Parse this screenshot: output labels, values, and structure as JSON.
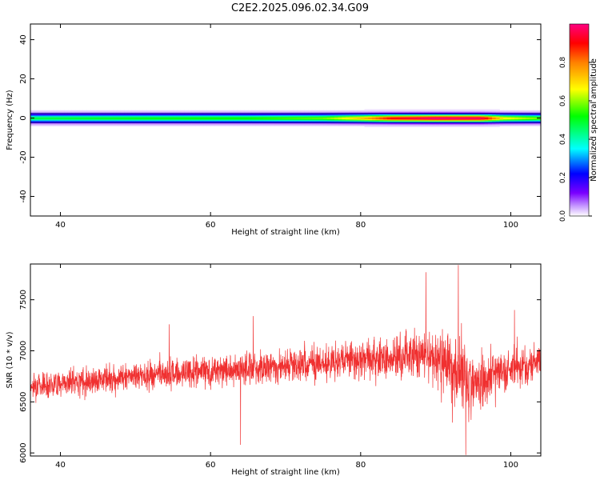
{
  "figure_title": "C2E2.2025.096.02.34.G09",
  "chart_data": [
    {
      "type": "heatmap",
      "xlabel": "Height of straight line (km)",
      "ylabel": "Frequency (Hz)",
      "xlim": [
        36,
        104
      ],
      "ylim": [
        -50,
        48
      ],
      "x_ticks": [
        40,
        60,
        80,
        100
      ],
      "y_ticks": [
        -40,
        -20,
        0,
        20,
        40
      ],
      "colorbar": {
        "label": "Normalized spectral amplitude",
        "range": [
          0,
          1
        ],
        "ticks": [
          0.0,
          0.2,
          0.4,
          0.6,
          0.8
        ],
        "tick_labels": [
          "0.0",
          "0.2",
          "0.4",
          "0.6",
          "0.8"
        ]
      },
      "band": {
        "center_hz": 0,
        "profile": [
          {
            "height_km": 36,
            "halfwidth_hz": 2.0,
            "peak_amplitude": 0.45
          },
          {
            "height_km": 50,
            "halfwidth_hz": 2.0,
            "peak_amplitude": 0.48
          },
          {
            "height_km": 65,
            "halfwidth_hz": 2.0,
            "peak_amplitude": 0.5
          },
          {
            "height_km": 75,
            "halfwidth_hz": 2.0,
            "peak_amplitude": 0.55
          },
          {
            "height_km": 80,
            "halfwidth_hz": 2.0,
            "peak_amplitude": 0.7
          },
          {
            "height_km": 84,
            "halfwidth_hz": 2.0,
            "peak_amplitude": 0.88
          },
          {
            "height_km": 90,
            "halfwidth_hz": 2.0,
            "peak_amplitude": 0.97
          },
          {
            "height_km": 96,
            "halfwidth_hz": 2.0,
            "peak_amplitude": 0.95
          },
          {
            "height_km": 99,
            "halfwidth_hz": 2.0,
            "peak_amplitude": 0.65
          },
          {
            "height_km": 104,
            "halfwidth_hz": 2.0,
            "peak_amplitude": 0.55
          }
        ]
      },
      "grid": false
    },
    {
      "type": "line",
      "xlabel": "Height of straight line (km)",
      "ylabel": "SNR (10 * v/v)",
      "xlim": [
        36,
        104
      ],
      "ylim": [
        5970,
        7850
      ],
      "x_ticks": [
        40,
        60,
        80,
        100
      ],
      "y_ticks": [
        6000,
        6500,
        7000,
        7500
      ],
      "grid": false,
      "series": [
        {
          "color": "#f03030",
          "envelope": [
            {
              "height_km": 36,
              "mean": 6660,
              "noise": 110
            },
            {
              "height_km": 45,
              "mean": 6720,
              "noise": 120
            },
            {
              "height_km": 55,
              "mean": 6780,
              "noise": 130
            },
            {
              "height_km": 65,
              "mean": 6830,
              "noise": 140
            },
            {
              "height_km": 75,
              "mean": 6880,
              "noise": 150
            },
            {
              "height_km": 82,
              "mean": 6920,
              "noise": 170
            },
            {
              "height_km": 88,
              "mean": 6950,
              "noise": 230
            },
            {
              "height_km": 91,
              "mean": 6900,
              "noise": 300
            },
            {
              "height_km": 93,
              "mean": 6850,
              "noise": 380
            },
            {
              "height_km": 95,
              "mean": 6650,
              "noise": 280
            },
            {
              "height_km": 98,
              "mean": 6800,
              "noise": 200
            },
            {
              "height_km": 104,
              "mean": 6880,
              "noise": 150
            }
          ],
          "spikes": [
            {
              "height_km": 88.7,
              "value": 7770
            },
            {
              "height_km": 93.0,
              "value": 7840
            },
            {
              "height_km": 94.0,
              "value": 5980
            },
            {
              "height_km": 65.7,
              "value": 7340
            },
            {
              "height_km": 54.5,
              "value": 7260
            },
            {
              "height_km": 100.5,
              "value": 7400
            },
            {
              "height_km": 64.0,
              "value": 6080
            }
          ]
        }
      ]
    }
  ]
}
